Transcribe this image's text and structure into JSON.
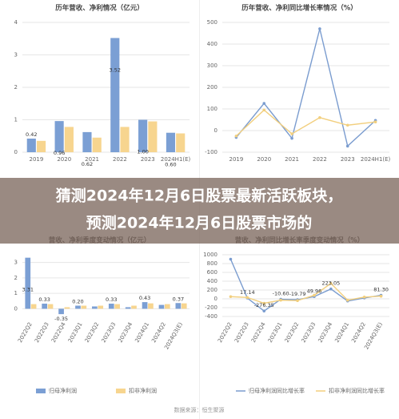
{
  "chart_data": [
    {
      "type": "bar",
      "title": "历年营收、净利情况（亿元）",
      "categories": [
        "2019",
        "2020",
        "2021",
        "2022",
        "2023",
        "2024H1(E)"
      ],
      "series": [
        {
          "color": "#7b9fd4",
          "values": [
            0.42,
            0.96,
            0.62,
            3.52,
            1.0,
            0.6
          ],
          "value_labels": [
            "0.42",
            "0.96",
            "0.62",
            "3.52",
            "1.00",
            "0.60"
          ]
        },
        {
          "color": "#f7d58f",
          "values": [
            0.35,
            0.78,
            0.45,
            0.78,
            0.95,
            0.58
          ]
        }
      ],
      "ylim": [
        0,
        4
      ],
      "yticks": [
        0,
        1,
        2,
        3,
        4
      ],
      "grid": true
    },
    {
      "type": "line",
      "title": "历年营收、净利同比增长率情况（%）",
      "categories": [
        "2019",
        "2020",
        "2021",
        "2022",
        "2023",
        "2024H1(E)"
      ],
      "series": [
        {
          "color": "#7a9ccf",
          "values": [
            -31.57,
            125.83,
            -35.64,
            470.87,
            -71.54,
            46.87
          ]
        },
        {
          "color": "#f2cf7e",
          "values": [
            -25,
            95,
            -15,
            60,
            25,
            40
          ]
        }
      ],
      "ylim": [
        -100,
        500
      ],
      "yticks": [
        -100,
        0,
        100,
        200,
        300,
        400,
        500
      ],
      "grid": true
    },
    {
      "type": "bar",
      "title": "营收、净利季度变动情况（亿元）",
      "categories": [
        "2022Q2",
        "2022Q3",
        "2022Q4",
        "2023Q1",
        "2023Q2",
        "2023Q3",
        "2023Q4",
        "2024Q1",
        "2024Q2",
        "2024Q3(E)"
      ],
      "series": [
        {
          "name": "归母净利润",
          "color": "#7b9fd4",
          "values": [
            3.31,
            0.33,
            -0.35,
            0.2,
            0.15,
            0.33,
            0.1,
            0.43,
            0.25,
            0.37
          ],
          "value_labels": [
            "3.31",
            "0.33",
            "-0.35",
            "0.20",
            null,
            "0.33",
            null,
            "0.43",
            null,
            "0.37"
          ]
        },
        {
          "name": "扣非净利润",
          "color": "#f7d58f",
          "values": [
            0.3,
            0.3,
            0.1,
            0.2,
            0.2,
            0.3,
            0.2,
            0.35,
            0.3,
            0.35
          ]
        }
      ],
      "ylim": [
        -0.5,
        3.5
      ],
      "yticks": [
        0,
        1,
        2,
        3
      ],
      "grid": true
    },
    {
      "type": "line",
      "title": "营收、净利同比增长率季度变动情况（%）",
      "categories": [
        "2022Q2",
        "2022Q3",
        "2022Q4",
        "2023Q1",
        "2023Q2",
        "2023Q3",
        "2023Q4",
        "2024Q1",
        "2024Q2",
        "2024Q3(E)"
      ],
      "series": [
        {
          "name": "归母净利润同比增长率",
          "color": "#7a9ccf",
          "values": [
            900,
            17.14,
            -276.35,
            -10.6,
            -19.79,
            49.96,
            223.05,
            -50,
            20,
            81.3
          ],
          "value_labels": [
            null,
            "17.14",
            "-276.35",
            "-10.60",
            "-19.79",
            "49.96",
            "223.05",
            null,
            null,
            "81.30"
          ]
        },
        {
          "name": "扣非净利润同比增长率",
          "color": "#f2cf7e",
          "values": [
            50,
            30,
            -100,
            -30,
            -40,
            80,
            350,
            -30,
            40,
            60
          ]
        }
      ],
      "ylim": [
        -400,
        1000
      ],
      "yticks": [
        -400,
        -200,
        0,
        200,
        400,
        600,
        800,
        1000
      ],
      "grid": true
    }
  ],
  "banner": {
    "lines": [
      "猜测2024年12月6日股票最新活跃板块，",
      "预测2024年12月6日股票市场的"
    ]
  },
  "footer": "数据来源：恒生聚源"
}
